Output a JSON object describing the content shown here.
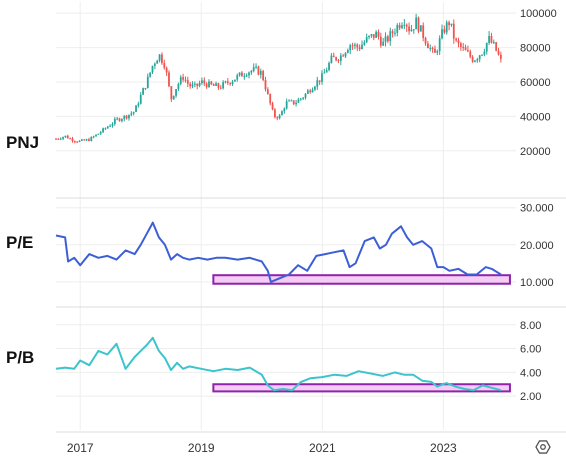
{
  "chart_data": {
    "type": "multi-panel",
    "x_axis": {
      "ticks": [
        "2017",
        "2019",
        "2021",
        "2023"
      ],
      "range": [
        2016.6,
        2024.2
      ]
    },
    "panels": [
      {
        "label": "PNJ",
        "type": "candlestick",
        "y_ticks": [
          "100000",
          "80000",
          "60000",
          "40000",
          "20000"
        ],
        "ylim": [
          10000,
          103000
        ],
        "up_color": "#26a69a",
        "down_color": "#ef5350",
        "close_path": [
          [
            2016.6,
            27000
          ],
          [
            2016.75,
            28500
          ],
          [
            2016.9,
            26000
          ],
          [
            2017.0,
            25500
          ],
          [
            2017.15,
            26500
          ],
          [
            2017.3,
            30000
          ],
          [
            2017.45,
            34000
          ],
          [
            2017.6,
            38000
          ],
          [
            2017.75,
            40000
          ],
          [
            2017.9,
            43000
          ],
          [
            2018.0,
            52000
          ],
          [
            2018.1,
            60000
          ],
          [
            2018.2,
            70000
          ],
          [
            2018.3,
            76000
          ],
          [
            2018.4,
            70000
          ],
          [
            2018.5,
            50000
          ],
          [
            2018.6,
            58000
          ],
          [
            2018.7,
            63000
          ],
          [
            2018.8,
            58000
          ],
          [
            2018.9,
            57000
          ],
          [
            2019.0,
            60000
          ],
          [
            2019.15,
            58000
          ],
          [
            2019.3,
            57000
          ],
          [
            2019.45,
            60000
          ],
          [
            2019.6,
            63000
          ],
          [
            2019.75,
            66000
          ],
          [
            2019.9,
            67000
          ],
          [
            2020.0,
            65000
          ],
          [
            2020.1,
            52000
          ],
          [
            2020.2,
            40000
          ],
          [
            2020.3,
            40000
          ],
          [
            2020.4,
            48000
          ],
          [
            2020.55,
            48000
          ],
          [
            2020.7,
            52000
          ],
          [
            2020.85,
            58000
          ],
          [
            2021.0,
            63000
          ],
          [
            2021.15,
            73000
          ],
          [
            2021.3,
            75000
          ],
          [
            2021.45,
            82000
          ],
          [
            2021.6,
            80000
          ],
          [
            2021.75,
            85000
          ],
          [
            2021.9,
            88000
          ],
          [
            2022.0,
            82000
          ],
          [
            2022.1,
            86000
          ],
          [
            2022.25,
            93000
          ],
          [
            2022.35,
            97000
          ],
          [
            2022.45,
            90000
          ],
          [
            2022.55,
            95000
          ],
          [
            2022.7,
            85000
          ],
          [
            2022.85,
            75000
          ],
          [
            2023.0,
            90000
          ],
          [
            2023.1,
            95000
          ],
          [
            2023.2,
            83000
          ],
          [
            2023.35,
            78000
          ],
          [
            2023.5,
            73000
          ],
          [
            2023.65,
            78000
          ],
          [
            2023.75,
            85000
          ],
          [
            2023.85,
            80000
          ],
          [
            2023.95,
            72000
          ]
        ],
        "rect": null
      },
      {
        "label": "P/E",
        "type": "line",
        "color": "#3d5fd6",
        "y_ticks": [
          "30.000",
          "20.000",
          "10.000"
        ],
        "ylim": [
          7,
          30.2
        ],
        "series": [
          [
            2016.6,
            22.5
          ],
          [
            2016.75,
            22
          ],
          [
            2016.8,
            15.5
          ],
          [
            2016.9,
            16.5
          ],
          [
            2017.0,
            14.5
          ],
          [
            2017.15,
            17.5
          ],
          [
            2017.3,
            16.5
          ],
          [
            2017.45,
            17
          ],
          [
            2017.6,
            16
          ],
          [
            2017.75,
            18.5
          ],
          [
            2017.9,
            17.5
          ],
          [
            2018.0,
            20
          ],
          [
            2018.1,
            23
          ],
          [
            2018.2,
            26
          ],
          [
            2018.3,
            22
          ],
          [
            2018.4,
            20
          ],
          [
            2018.5,
            16
          ],
          [
            2018.6,
            17.5
          ],
          [
            2018.7,
            16.5
          ],
          [
            2018.8,
            16
          ],
          [
            2018.95,
            16.5
          ],
          [
            2019.1,
            16
          ],
          [
            2019.25,
            16.5
          ],
          [
            2019.4,
            16.5
          ],
          [
            2019.6,
            16
          ],
          [
            2019.8,
            16.5
          ],
          [
            2020.0,
            15.5
          ],
          [
            2020.1,
            13
          ],
          [
            2020.15,
            10
          ],
          [
            2020.3,
            11
          ],
          [
            2020.45,
            12
          ],
          [
            2020.6,
            14.5
          ],
          [
            2020.75,
            13
          ],
          [
            2020.9,
            17
          ],
          [
            2021.05,
            17.5
          ],
          [
            2021.2,
            18
          ],
          [
            2021.35,
            18.5
          ],
          [
            2021.45,
            14
          ],
          [
            2021.55,
            15
          ],
          [
            2021.7,
            21
          ],
          [
            2021.85,
            22
          ],
          [
            2021.95,
            19
          ],
          [
            2022.05,
            20
          ],
          [
            2022.15,
            23
          ],
          [
            2022.3,
            25
          ],
          [
            2022.4,
            22
          ],
          [
            2022.5,
            20
          ],
          [
            2022.65,
            21
          ],
          [
            2022.8,
            19
          ],
          [
            2022.9,
            14
          ],
          [
            2023.0,
            14
          ],
          [
            2023.1,
            13
          ],
          [
            2023.25,
            13.5
          ],
          [
            2023.4,
            12
          ],
          [
            2023.55,
            12
          ],
          [
            2023.7,
            14
          ],
          [
            2023.8,
            13.5
          ],
          [
            2023.95,
            12
          ]
        ],
        "rect": {
          "x_start": 2019.2,
          "x_end": 2024.1,
          "y_low": 9.5,
          "y_high": 11.8
        }
      },
      {
        "label": "P/B",
        "type": "line",
        "color": "#3cc4cc",
        "y_ticks": [
          "8.00",
          "6.00",
          "4.00",
          "2.00"
        ],
        "ylim": [
          0.5,
          8.4
        ],
        "series": [
          [
            2016.6,
            4.3
          ],
          [
            2016.75,
            4.4
          ],
          [
            2016.9,
            4.3
          ],
          [
            2017.0,
            5.0
          ],
          [
            2017.15,
            4.6
          ],
          [
            2017.3,
            5.8
          ],
          [
            2017.45,
            5.5
          ],
          [
            2017.6,
            6.4
          ],
          [
            2017.75,
            4.3
          ],
          [
            2017.9,
            5.3
          ],
          [
            2018.0,
            5.8
          ],
          [
            2018.1,
            6.3
          ],
          [
            2018.2,
            6.9
          ],
          [
            2018.3,
            5.8
          ],
          [
            2018.4,
            5.2
          ],
          [
            2018.5,
            4.2
          ],
          [
            2018.6,
            4.8
          ],
          [
            2018.7,
            4.3
          ],
          [
            2018.8,
            4.5
          ],
          [
            2019.0,
            4.3
          ],
          [
            2019.2,
            4.1
          ],
          [
            2019.4,
            4.3
          ],
          [
            2019.6,
            4.2
          ],
          [
            2019.8,
            4.4
          ],
          [
            2020.0,
            3.8
          ],
          [
            2020.1,
            2.9
          ],
          [
            2020.2,
            2.5
          ],
          [
            2020.35,
            2.6
          ],
          [
            2020.5,
            2.5
          ],
          [
            2020.65,
            3.2
          ],
          [
            2020.8,
            3.5
          ],
          [
            2021.0,
            3.6
          ],
          [
            2021.2,
            3.8
          ],
          [
            2021.4,
            3.7
          ],
          [
            2021.6,
            4.1
          ],
          [
            2021.8,
            3.9
          ],
          [
            2022.0,
            3.7
          ],
          [
            2022.2,
            4.0
          ],
          [
            2022.35,
            3.8
          ],
          [
            2022.5,
            3.8
          ],
          [
            2022.65,
            3.3
          ],
          [
            2022.8,
            3.2
          ],
          [
            2022.9,
            2.8
          ],
          [
            2023.05,
            3.1
          ],
          [
            2023.2,
            2.8
          ],
          [
            2023.35,
            2.6
          ],
          [
            2023.5,
            2.5
          ],
          [
            2023.65,
            2.9
          ],
          [
            2023.8,
            2.7
          ],
          [
            2023.95,
            2.5
          ]
        ],
        "rect": {
          "x_start": 2019.2,
          "x_end": 2024.1,
          "y_low": 2.4,
          "y_high": 3.0
        }
      }
    ],
    "rect_style": {
      "fill": "#f4ccf4",
      "stroke": "#8e24aa"
    }
  },
  "settings_icon": "gear-icon"
}
